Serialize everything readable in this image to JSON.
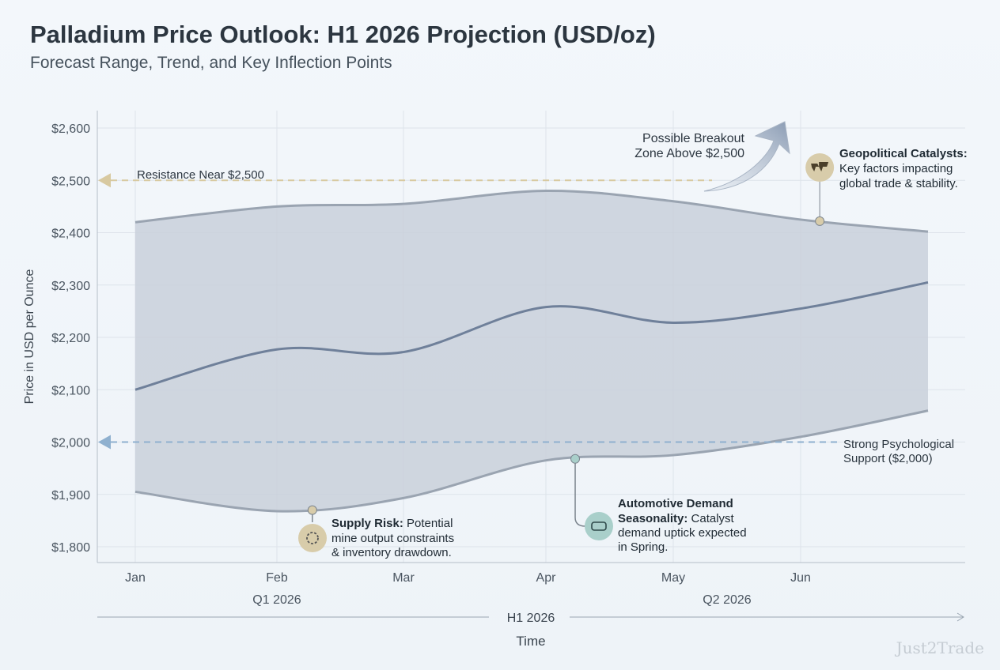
{
  "title": "Palladium Price Outlook: H1 2026 Projection (USD/oz)",
  "subtitle": "Forecast Range, Trend, and Key Inflection Points",
  "watermark": "Just2Trade",
  "chart_data": {
    "type": "area",
    "xlabel": "Time",
    "ylabel": "Price in USD per Ounce",
    "ylim": [
      1800,
      2600
    ],
    "yticks": [
      1800,
      1900,
      2000,
      2100,
      2200,
      2300,
      2400,
      2500,
      2600
    ],
    "ytick_labels": [
      "$1,800",
      "$1,900",
      "$2,000",
      "$2,100",
      "$2,200",
      "$2,300",
      "$2,400",
      "$2,500",
      "$2,600"
    ],
    "x": [
      "2026-01",
      "2026-02",
      "2026-03",
      "2026-04",
      "2026-05",
      "2026-06",
      "2026-07"
    ],
    "xtick_labels": [
      "Jan",
      "Feb",
      "Mar",
      "Apr",
      "May",
      "Jun"
    ],
    "quarter_labels": [
      "Q1 2026",
      "Q2 2026"
    ],
    "period_label": "H1 2026",
    "grid": true,
    "series": [
      {
        "role": "upper",
        "values": [
          2420,
          2450,
          2455,
          2480,
          2460,
          2425,
          2402
        ]
      },
      {
        "role": "trend",
        "values": [
          2100,
          2177,
          2172,
          2258,
          2228,
          2255,
          2305
        ]
      },
      {
        "role": "lower",
        "values": [
          1905,
          1868,
          1893,
          1965,
          1975,
          2010,
          2060
        ]
      }
    ],
    "reference_lines": [
      {
        "value": 2500,
        "label": "Resistance Near $2,500",
        "color": "#d8c9a0"
      },
      {
        "value": 2000,
        "label": "Strong Psychological Support ($2,000)",
        "color": "#8fb0cf"
      }
    ],
    "annotations": [
      {
        "label": "Possible Breakout Zone Above $2,500",
        "lines": [
          "Possible Breakout",
          "Zone Above $2,500"
        ],
        "icon": "arrow-up-right-icon"
      },
      {
        "x_month": 2.28,
        "value": 1870,
        "bold": "Supply Risk:",
        "lines": [
          "Potential",
          "mine output constraints",
          "& inventory drawdown."
        ],
        "icon": "gear-icon",
        "color": "#d8ccaa"
      },
      {
        "x_month": 4.23,
        "value": 1968,
        "bold_lines": [
          "Automotive Demand",
          "Seasonality:"
        ],
        "lines": [
          "Catalyst",
          "demand uptick expected",
          "in Spring."
        ],
        "icon": "car-icon",
        "color": "#a9cfca"
      },
      {
        "x_month": 6.15,
        "value": 2422,
        "bold": "Geopolitical Catalysts:",
        "lines": [
          "Key factors impacting",
          "global trade & stability."
        ],
        "icon": "world-map-icon",
        "color": "#d8ccaa"
      }
    ],
    "colors": {
      "band": "#c9d0da",
      "band_edge": "#9aa4b1",
      "trend": "#6f809a"
    }
  }
}
